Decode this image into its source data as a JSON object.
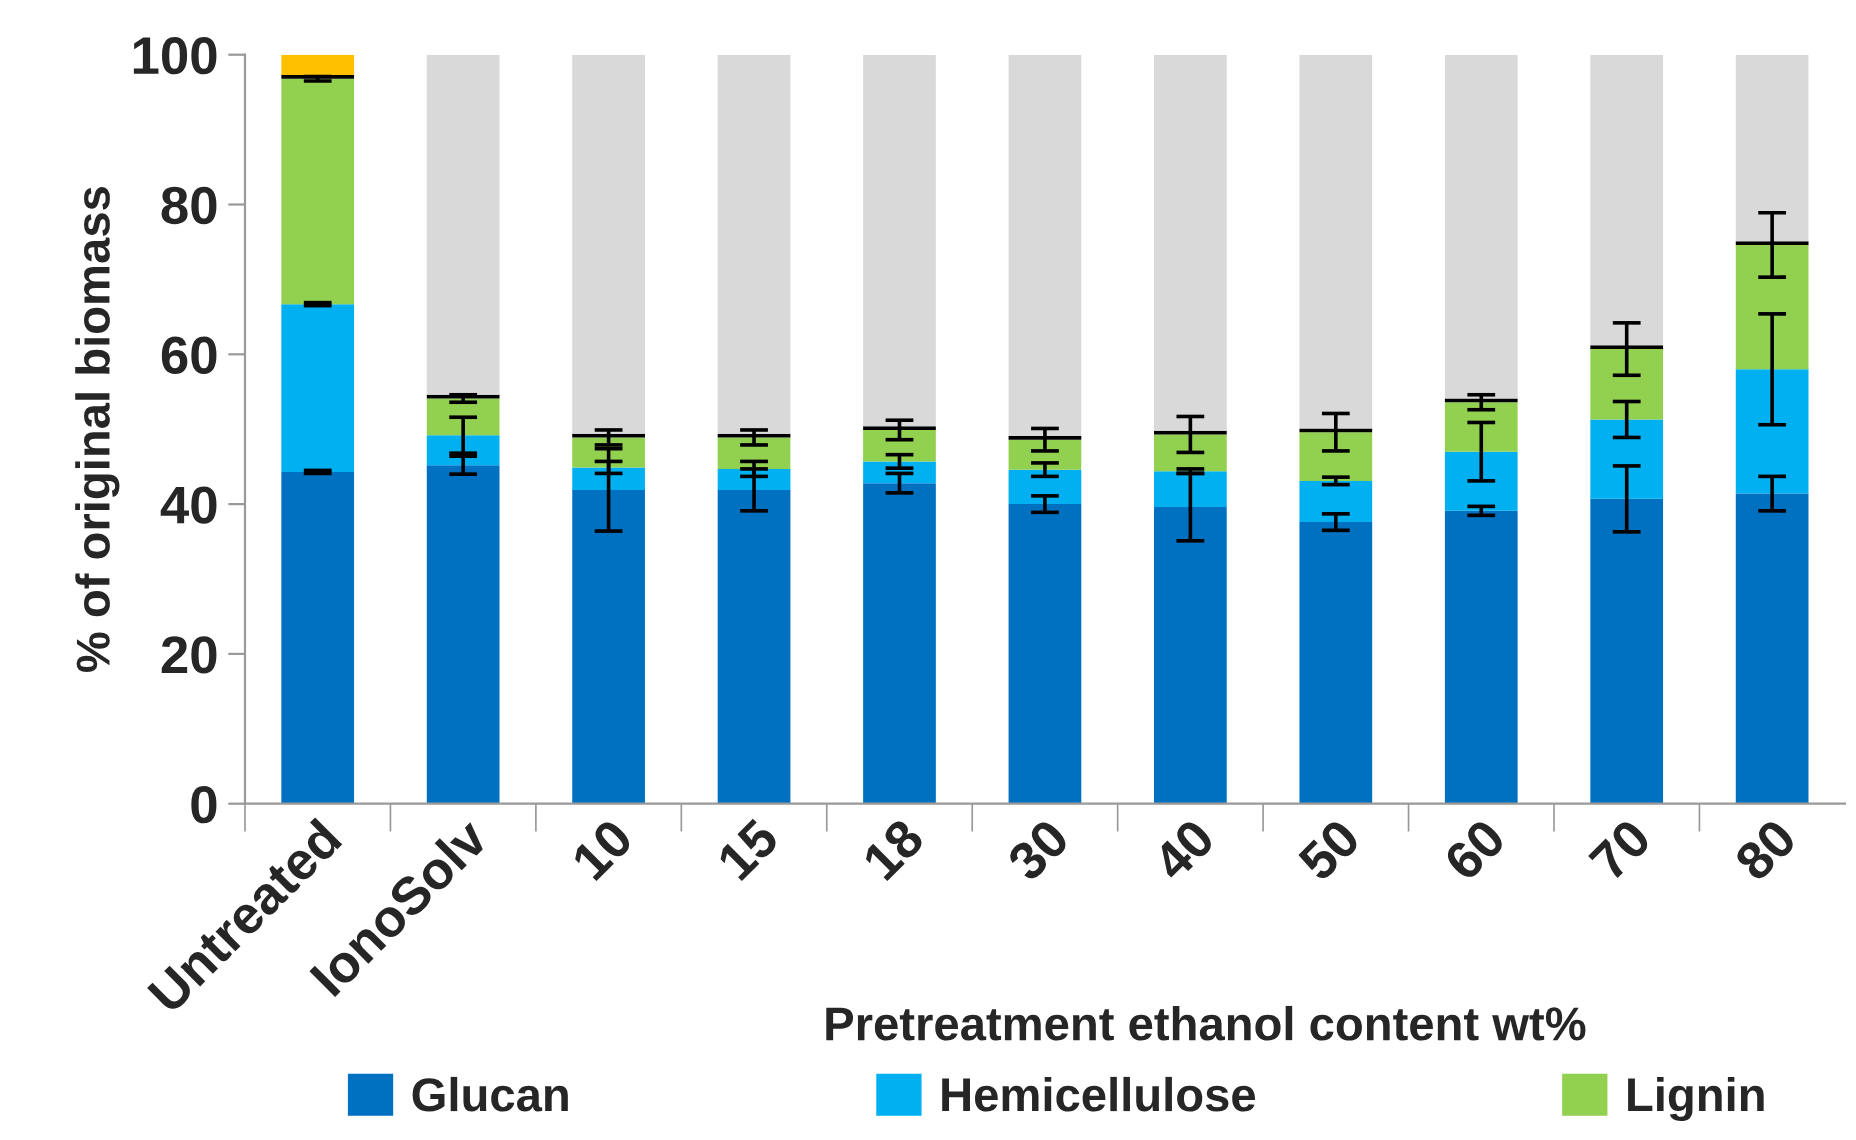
{
  "chart_data": {
    "type": "bar",
    "stacked": true,
    "xlabel": "Pretreatment ethanol content wt%",
    "ylabel": "% of original biomass",
    "categories": [
      "Untreated",
      "IonoSolv",
      "10",
      "15",
      "18",
      "30",
      "40",
      "50",
      "60",
      "70",
      "80"
    ],
    "series": [
      {
        "name": "Glucan",
        "color": "#0070c0",
        "values": [
          44.3,
          45.2,
          41.9,
          41.9,
          42.8,
          40.0,
          39.6,
          37.6,
          39.1,
          40.7,
          41.4
        ],
        "errors": [
          0.2,
          1.2,
          5.5,
          2.8,
          1.3,
          1.1,
          4.5,
          1.1,
          0.6,
          4.4,
          2.3
        ]
      },
      {
        "name": "Hemicellulose",
        "color": "#00b0f0",
        "values": [
          22.4,
          4.0,
          3.0,
          2.8,
          2.9,
          4.6,
          4.8,
          5.5,
          7.9,
          10.6,
          16.6
        ],
        "errors": [
          0.2,
          2.4,
          0.8,
          1.0,
          0.9,
          0.9,
          0.3,
          0.5,
          3.9,
          2.4,
          7.4
        ]
      },
      {
        "name": "Lignin",
        "color": "#92d050",
        "values": [
          30.1,
          4.9,
          4.0,
          4.2,
          4.2,
          4.0,
          4.9,
          6.5,
          6.6,
          9.4,
          16.6
        ],
        "errors": [
          0.3,
          0.5,
          1.0,
          1.0,
          1.3,
          1.5,
          2.4,
          2.5,
          1.0,
          3.5,
          4.3
        ]
      },
      {
        "color": "#000000",
        "values": [
          0.5,
          0.5,
          0.5,
          0.5,
          0.5,
          0.5,
          0.5,
          0.5,
          0.5,
          0.5,
          0.5
        ]
      },
      {
        "color": "#ffc000",
        "values": [
          2.7,
          0,
          0,
          0,
          0,
          0,
          0,
          0,
          0,
          0,
          0
        ]
      },
      {
        "color": "#d9d9d9",
        "values": [
          0,
          45.4,
          50.6,
          50.6,
          49.6,
          50.9,
          50.2,
          49.9,
          45.9,
          38.8,
          24.9
        ]
      }
    ],
    "ylim": [
      0,
      100
    ],
    "yticks": [
      0,
      20,
      40,
      60,
      80,
      100
    ],
    "grid": false,
    "legend": "bottom"
  }
}
